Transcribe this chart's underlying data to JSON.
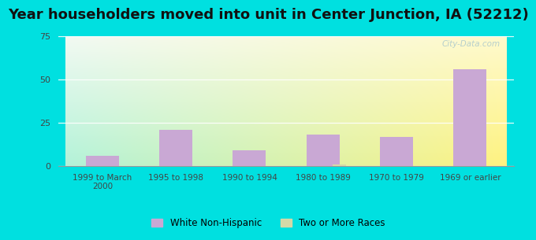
{
  "title": "Year householders moved into unit in Center Junction, IA (52212)",
  "categories": [
    "1999 to March\n2000",
    "1995 to 1998",
    "1990 to 1994",
    "1980 to 1989",
    "1970 to 1979",
    "1969 or earlier"
  ],
  "white_non_hispanic": [
    6,
    21,
    9,
    18,
    17,
    56
  ],
  "two_or_more_races": [
    0,
    0,
    0,
    1,
    0,
    0
  ],
  "bar_color_white": "#c9a8d4",
  "bar_color_two": "#d4d9a8",
  "background_outer": "#00e0e0",
  "ylim": [
    0,
    75
  ],
  "yticks": [
    0,
    25,
    50,
    75
  ],
  "title_fontsize": 13,
  "bar_width": 0.45,
  "legend_white": "White Non-Hispanic",
  "legend_two": "Two or More Races",
  "watermark": "City-Data.com"
}
